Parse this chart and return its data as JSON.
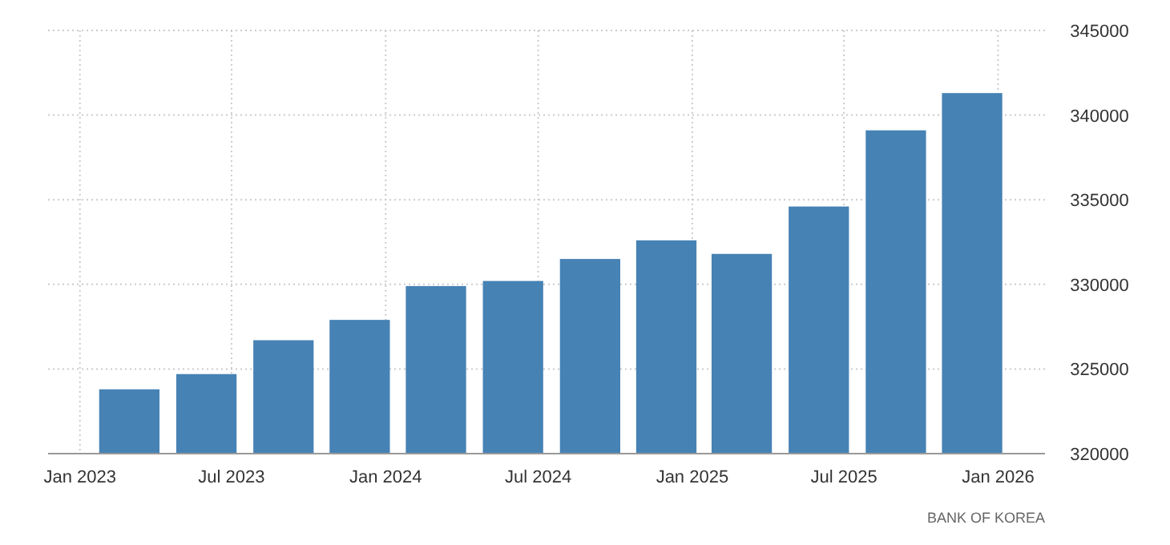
{
  "chart_data": {
    "type": "bar",
    "x": [
      "2023-03",
      "2023-06",
      "2023-09",
      "2023-12",
      "2024-03",
      "2024-06",
      "2024-09",
      "2024-12",
      "2025-03",
      "2025-06",
      "2025-09",
      "2025-12"
    ],
    "values": [
      323800,
      324700,
      326700,
      327900,
      329900,
      330200,
      331500,
      332600,
      331800,
      334600,
      339100,
      341300
    ],
    "color": "#4682b4",
    "xlim": [
      "2022-11-24",
      "2026-02-26"
    ],
    "xticks": [
      {
        "value": "2023-01",
        "label": "Jan 2023"
      },
      {
        "value": "2023-07",
        "label": "Jul 2023"
      },
      {
        "value": "2024-01",
        "label": "Jan 2024"
      },
      {
        "value": "2024-07",
        "label": "Jul 2024"
      },
      {
        "value": "2025-01",
        "label": "Jan 2025"
      },
      {
        "value": "2025-07",
        "label": "Jul 2025"
      },
      {
        "value": "2026-01",
        "label": "Jan 2026"
      }
    ],
    "ylim": [
      320000,
      345000
    ],
    "yticks": [
      320000,
      325000,
      330000,
      335000,
      340000,
      345000
    ],
    "grid": true,
    "annotations": [
      "BANK OF KOREA"
    ]
  }
}
